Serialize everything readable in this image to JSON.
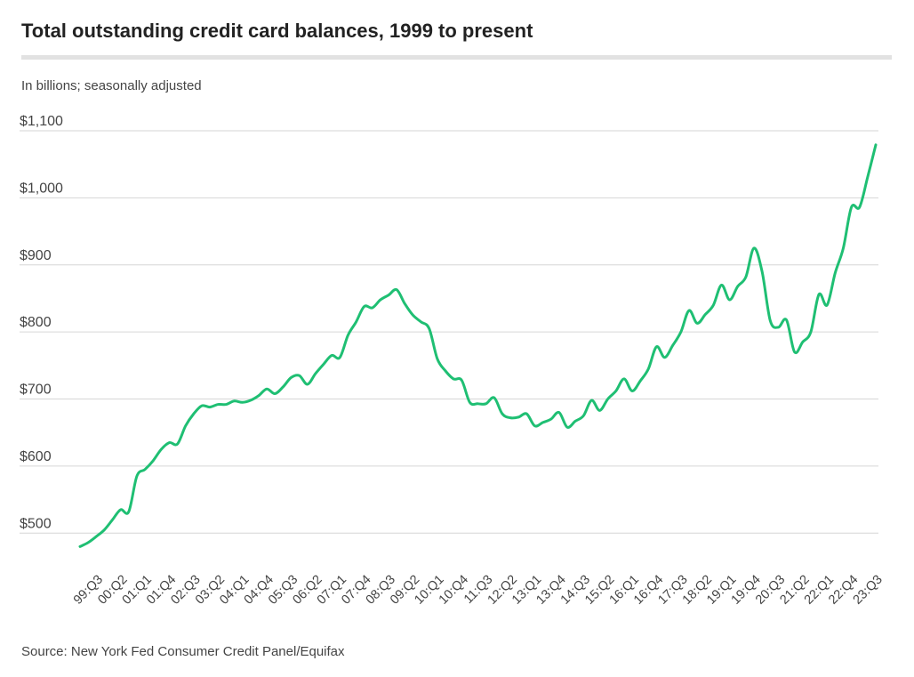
{
  "chart_data": {
    "type": "line",
    "title": "Total outstanding credit card balances, 1999 to present",
    "subtitle": "In billions; seasonally adjusted",
    "source": "Source: New York Fed Consumer Credit Panel/Equifax",
    "categories": [
      null,
      null,
      "99:Q3",
      null,
      null,
      "00:Q2",
      null,
      null,
      "01:Q1",
      null,
      null,
      "01:Q4",
      null,
      null,
      "02:Q3",
      null,
      null,
      "03:Q2",
      null,
      null,
      "04:Q1",
      null,
      null,
      "04:Q4",
      null,
      null,
      "05:Q3",
      null,
      null,
      "06:Q2",
      null,
      null,
      "07:Q1",
      null,
      null,
      "07:Q4",
      null,
      null,
      "08:Q3",
      null,
      null,
      "09:Q2",
      null,
      null,
      "10:Q1",
      null,
      null,
      "10:Q4",
      null,
      null,
      "11:Q3",
      null,
      null,
      "12:Q2",
      null,
      null,
      "13:Q1",
      null,
      null,
      "13:Q4",
      null,
      null,
      "14:Q3",
      null,
      null,
      "15:Q2",
      null,
      null,
      "16:Q1",
      null,
      null,
      "16:Q4",
      null,
      null,
      "17:Q3",
      null,
      null,
      "18:Q2",
      null,
      null,
      "19:Q1",
      null,
      null,
      "19:Q4",
      null,
      null,
      "20:Q3",
      null,
      null,
      "21:Q2",
      null,
      null,
      "22:Q1",
      null,
      null,
      "22:Q4",
      null,
      null,
      "23:Q3"
    ],
    "series": [
      {
        "name": "Credit card balances",
        "color": "#1fbf73",
        "values": [
          480,
          486,
          495,
          505,
          520,
          535,
          532,
          585,
          595,
          608,
          625,
          635,
          633,
          660,
          678,
          690,
          688,
          692,
          692,
          697,
          695,
          698,
          705,
          715,
          708,
          718,
          732,
          735,
          722,
          738,
          752,
          765,
          762,
          795,
          815,
          838,
          836,
          848,
          855,
          863,
          842,
          825,
          815,
          805,
          760,
          742,
          730,
          728,
          695,
          693,
          693,
          702,
          678,
          672,
          673,
          678,
          660,
          665,
          670,
          680,
          658,
          667,
          675,
          698,
          683,
          700,
          712,
          730,
          712,
          727,
          745,
          778,
          762,
          780,
          800,
          832,
          813,
          826,
          840,
          870,
          848,
          868,
          882,
          925,
          890,
          817,
          807,
          818,
          770,
          785,
          800,
          856,
          840,
          888,
          925,
          986,
          986,
          1031,
          1079
        ]
      }
    ],
    "ylim": [
      450,
      1100
    ],
    "yticks": [
      {
        "value": 500,
        "label": "$500"
      },
      {
        "value": 600,
        "label": "$600"
      },
      {
        "value": 700,
        "label": "$700"
      },
      {
        "value": 800,
        "label": "$800"
      },
      {
        "value": 900,
        "label": "$900"
      },
      {
        "value": 1000,
        "label": "$1,000"
      },
      {
        "value": 1100,
        "label": "$1,100"
      }
    ],
    "grid": true
  }
}
